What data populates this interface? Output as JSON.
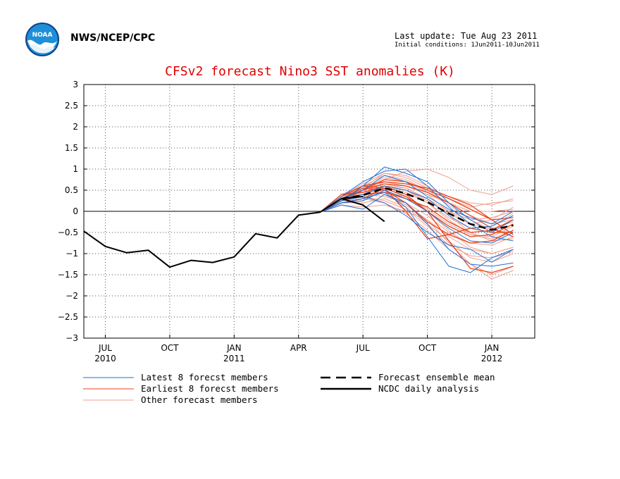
{
  "header": {
    "agency": "NWS/NCEP/CPC",
    "last_update": "Last update: Tue Aug 23 2011",
    "initial_conditions": "Initial conditions: 1Jun2011-10Jun2011",
    "logo_text": "NOAA"
  },
  "chart_data": {
    "type": "line",
    "title": "CFSv2 forecast Nino3 SST anomalies (K)",
    "xlabel": "",
    "ylabel": "",
    "ylim": [
      -3,
      3
    ],
    "yticks": [
      3,
      2.5,
      2,
      1.5,
      1,
      0.5,
      0,
      -0.5,
      -1,
      -1.5,
      -2,
      -2.5,
      -3
    ],
    "ytick_labels": [
      "3",
      "2.5",
      "2",
      "1.5",
      "1",
      "0.5",
      "0",
      "−0.5",
      "−1",
      "−1.5",
      "−2",
      "−2.5",
      "−3"
    ],
    "xlim": [
      "2010-06",
      "2012-03"
    ],
    "xticks": [
      {
        "date": "2010-07",
        "label": "JUL",
        "year": "2010"
      },
      {
        "date": "2010-10",
        "label": "OCT",
        "year": ""
      },
      {
        "date": "2011-01",
        "label": "JAN",
        "year": "2011"
      },
      {
        "date": "2011-04",
        "label": "APR",
        "year": ""
      },
      {
        "date": "2011-07",
        "label": "JUL",
        "year": ""
      },
      {
        "date": "2011-10",
        "label": "OCT",
        "year": ""
      },
      {
        "date": "2012-01",
        "label": "JAN",
        "year": "2012"
      }
    ],
    "grid": true,
    "zero_line": true,
    "legend_position": "bottom",
    "legend": [
      {
        "label": "Latest 8 forecst members",
        "color": "#1f6fd0",
        "style": "solid-thin"
      },
      {
        "label": "Earliest 8 forecst members",
        "color": "#e8431a",
        "style": "solid-thin"
      },
      {
        "label": "Other forecast members",
        "color": "#f0a090",
        "style": "solid-thin"
      },
      {
        "label": "Forecast ensemble mean",
        "color": "#000000",
        "style": "dashed-thick"
      },
      {
        "label": "NCDC daily analysis",
        "color": "#000000",
        "style": "solid-thick"
      }
    ],
    "observed_monthly": {
      "dates": [
        "2010-06",
        "2010-07",
        "2010-08",
        "2010-09",
        "2010-10",
        "2010-11",
        "2010-12",
        "2011-01",
        "2011-02",
        "2011-03",
        "2011-04",
        "2011-05",
        "2011-06",
        "2011-07"
      ],
      "values": [
        -0.47,
        -0.83,
        -0.98,
        -0.92,
        -1.32,
        -1.16,
        -1.21,
        -1.08,
        -0.53,
        -0.63,
        -0.09,
        -0.02,
        0.3,
        0.35
      ]
    },
    "ncdc_daily": {
      "dates": [
        "2011-06",
        "2011-07",
        "2011-08"
      ],
      "values": [
        0.3,
        0.15,
        -0.24
      ]
    },
    "ensemble_mean": {
      "dates": [
        "2011-06",
        "2011-07",
        "2011-08",
        "2011-09",
        "2011-10",
        "2011-11",
        "2011-12",
        "2012-01",
        "2012-02"
      ],
      "values": [
        0.3,
        0.38,
        0.55,
        0.42,
        0.22,
        -0.05,
        -0.3,
        -0.44,
        -0.33
      ]
    },
    "members": {
      "dates": [
        "2011-05",
        "2011-06",
        "2011-07",
        "2011-08",
        "2011-09",
        "2011-10",
        "2011-11",
        "2011-12",
        "2012-01",
        "2012-02"
      ],
      "latest": [
        [
          -0.02,
          0.25,
          0.6,
          1.05,
          0.9,
          0.7,
          0.2,
          -0.2,
          -0.5,
          -0.2
        ],
        [
          -0.02,
          0.2,
          0.3,
          0.45,
          0.1,
          -0.6,
          -1.3,
          -1.45,
          -1.1,
          -0.9
        ],
        [
          -0.02,
          0.35,
          0.7,
          0.95,
          1.0,
          0.6,
          0.1,
          -0.3,
          -0.6,
          -0.7
        ],
        [
          -0.02,
          0.15,
          0.05,
          0.4,
          0.2,
          -0.3,
          -0.9,
          -1.25,
          -1.3,
          -1.22
        ],
        [
          -0.02,
          0.3,
          0.4,
          0.6,
          0.5,
          0.3,
          -0.1,
          -0.4,
          -0.35,
          -0.1
        ],
        [
          -0.02,
          0.25,
          0.35,
          0.2,
          -0.1,
          -0.5,
          -0.8,
          -0.9,
          -1.2,
          -0.9
        ],
        [
          -0.02,
          0.3,
          0.5,
          0.85,
          0.7,
          0.35,
          0.05,
          -0.15,
          -0.3,
          0.0
        ],
        [
          -0.02,
          0.2,
          0.25,
          0.5,
          0.3,
          0.0,
          -0.4,
          -0.7,
          -0.75,
          -0.5
        ]
      ],
      "earliest": [
        [
          -0.02,
          0.35,
          0.6,
          0.7,
          0.65,
          0.55,
          0.35,
          0.15,
          -0.2,
          -0.55
        ],
        [
          -0.02,
          0.25,
          0.5,
          0.65,
          0.6,
          0.45,
          0.2,
          -0.1,
          -0.4,
          -0.6
        ],
        [
          -0.02,
          0.4,
          0.45,
          0.6,
          0.4,
          0.0,
          -0.7,
          -1.35,
          -1.45,
          -1.3
        ],
        [
          -0.02,
          0.3,
          0.55,
          0.5,
          0.2,
          -0.25,
          -0.55,
          -0.75,
          -0.7,
          -0.45
        ],
        [
          -0.02,
          0.2,
          0.3,
          0.55,
          0.0,
          -0.65,
          -0.55,
          -0.4,
          -0.5,
          -0.5
        ],
        [
          -0.02,
          0.3,
          0.5,
          0.75,
          0.7,
          0.5,
          0.3,
          0.05,
          -0.2,
          -0.15
        ],
        [
          -0.02,
          0.35,
          0.6,
          0.55,
          0.35,
          0.0,
          -0.35,
          -0.6,
          -0.55,
          -0.3
        ],
        [
          -0.02,
          0.25,
          0.4,
          0.45,
          0.3,
          0.1,
          -0.25,
          -0.5,
          -0.45,
          -0.2
        ]
      ],
      "other": [
        [
          -0.02,
          0.35,
          0.5,
          0.75,
          0.95,
          1.0,
          0.8,
          0.5,
          0.4,
          0.6
        ],
        [
          -0.02,
          0.3,
          0.55,
          0.9,
          0.85,
          0.6,
          0.3,
          0.1,
          0.2,
          0.25
        ],
        [
          -0.02,
          0.25,
          0.35,
          0.6,
          0.55,
          0.3,
          -0.1,
          -0.5,
          -0.7,
          -0.65
        ],
        [
          -0.02,
          0.2,
          0.2,
          0.3,
          0.1,
          -0.3,
          -0.7,
          -1.1,
          -1.2,
          -1.0
        ],
        [
          -0.02,
          0.3,
          0.4,
          0.7,
          0.6,
          0.4,
          0.2,
          0.0,
          0.0,
          0.05
        ],
        [
          -0.02,
          0.25,
          0.45,
          0.5,
          0.3,
          0.0,
          -0.45,
          -0.85,
          -1.0,
          -0.85
        ],
        [
          -0.02,
          0.15,
          0.1,
          0.15,
          0.0,
          -0.2,
          -0.6,
          -0.9,
          -1.0,
          -0.85
        ],
        [
          -0.02,
          0.35,
          0.6,
          0.85,
          0.75,
          0.5,
          0.2,
          -0.1,
          -0.3,
          -0.2
        ],
        [
          -0.02,
          0.3,
          0.45,
          0.55,
          0.45,
          0.2,
          -0.2,
          -0.55,
          -0.6,
          -0.35
        ],
        [
          -0.02,
          0.25,
          0.5,
          0.4,
          0.15,
          -0.2,
          -0.75,
          -1.25,
          -1.5,
          -1.3
        ],
        [
          -0.02,
          0.35,
          0.65,
          0.9,
          0.8,
          0.55,
          0.35,
          0.2,
          0.15,
          0.3
        ],
        [
          -0.02,
          0.2,
          0.3,
          0.45,
          0.35,
          0.05,
          -0.3,
          -0.55,
          -0.65,
          -0.45
        ],
        [
          -0.02,
          0.3,
          0.4,
          0.35,
          0.2,
          -0.1,
          -0.5,
          -0.75,
          -0.8,
          -0.6
        ],
        [
          -0.02,
          0.25,
          0.55,
          0.7,
          0.6,
          0.4,
          0.0,
          -0.3,
          -0.2,
          0.1
        ],
        [
          -0.02,
          0.3,
          0.35,
          0.25,
          0.05,
          -0.35,
          -0.8,
          -1.05,
          -1.1,
          -0.95
        ],
        [
          -0.02,
          0.4,
          0.6,
          0.6,
          0.5,
          0.25,
          -0.05,
          -0.3,
          -0.4,
          -0.25
        ],
        [
          -0.02,
          0.2,
          0.25,
          0.55,
          0.5,
          0.2,
          -0.15,
          -0.4,
          -0.35,
          -0.05
        ],
        [
          -0.02,
          0.3,
          0.5,
          0.8,
          0.7,
          0.45,
          0.15,
          -0.2,
          -0.45,
          -0.5
        ],
        [
          -0.02,
          0.25,
          0.3,
          0.2,
          -0.05,
          -0.45,
          -0.9,
          -1.25,
          -1.6,
          -1.4
        ],
        [
          -0.02,
          0.35,
          0.55,
          0.65,
          0.55,
          0.3,
          0.0,
          -0.2,
          -0.15,
          0.0
        ]
      ]
    }
  }
}
